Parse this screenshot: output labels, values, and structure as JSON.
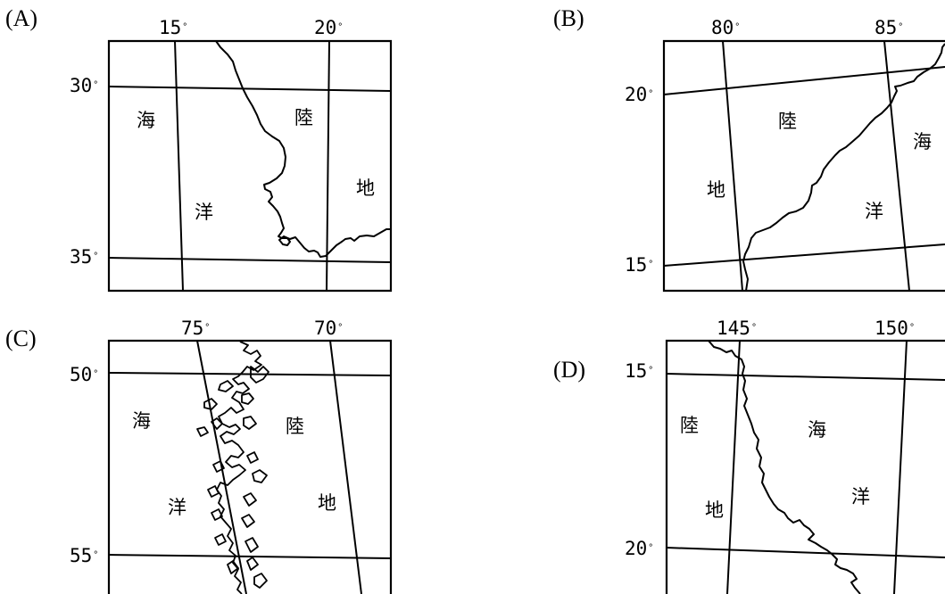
{
  "panels": {
    "a": {
      "label": "(A)",
      "lon_labels": [
        "15",
        "20"
      ],
      "lat_labels": [
        "30",
        "35"
      ],
      "degree_symbol": "°",
      "sea": [
        "海",
        "洋"
      ],
      "land": [
        "陸",
        "地"
      ]
    },
    "b": {
      "label": "(B)",
      "lon_labels": [
        "80",
        "85"
      ],
      "lat_labels": [
        "20",
        "15"
      ],
      "degree_symbol": "°",
      "sea": [
        "海",
        "洋"
      ],
      "land": [
        "陸",
        "地"
      ]
    },
    "c": {
      "label": "(C)",
      "lon_labels": [
        "75",
        "70"
      ],
      "lat_labels": [
        "50",
        "55"
      ],
      "degree_symbol": "°",
      "sea": [
        "海",
        "洋"
      ],
      "land": [
        "陸",
        "地"
      ]
    },
    "d": {
      "label": "(D)",
      "lon_labels": [
        "145",
        "150"
      ],
      "lat_labels": [
        "15",
        "20"
      ],
      "degree_symbol": "°",
      "sea": [
        "海",
        "洋"
      ],
      "land": [
        "陸",
        "地"
      ]
    }
  }
}
